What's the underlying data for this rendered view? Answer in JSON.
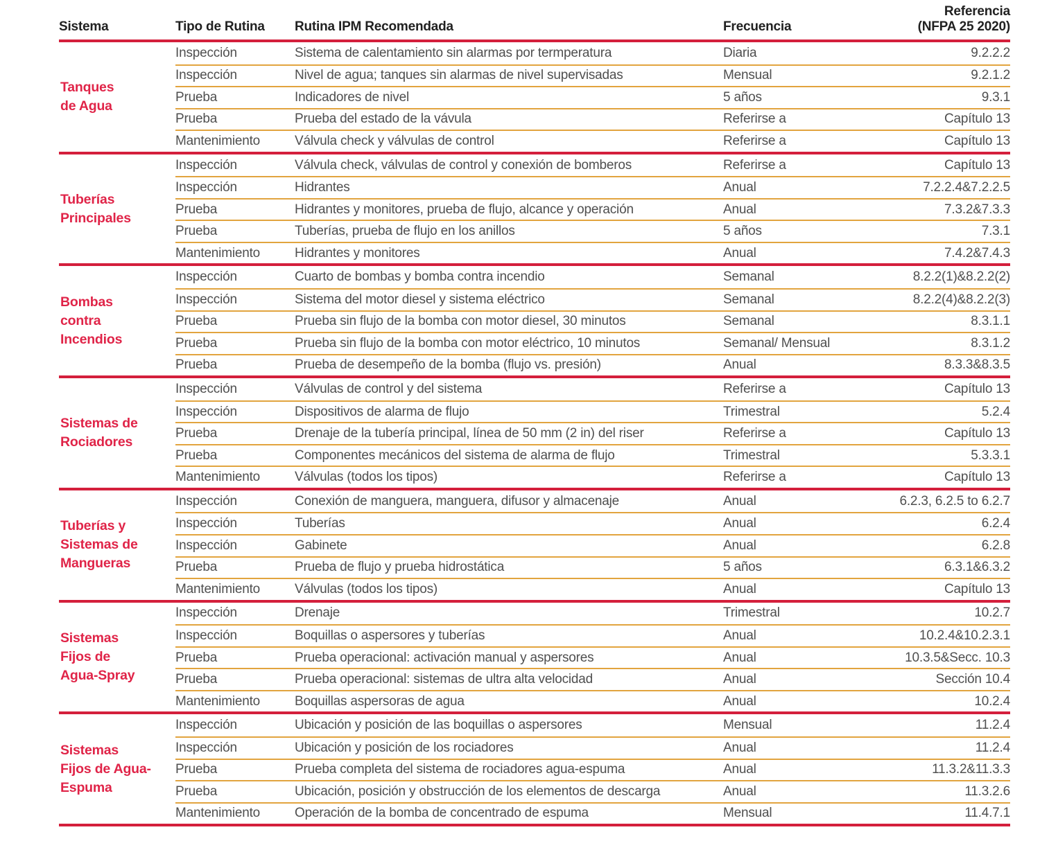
{
  "title": "Tabla de rutinas IPM recomendadas NFPA 25 2020",
  "colors": {
    "group_separator_line": "#d41f3c",
    "system_label_text": "#e02448",
    "row_divider_line": "#e2a43e",
    "body_text": "#4f4f4f",
    "header_text": "#212121"
  },
  "header": {
    "sistema": "Sistema",
    "tipo": "Tipo de Rutina",
    "rutina": "Rutina IPM Recomendada",
    "frecuencia": "Frecuencia",
    "referencia_line1": "Referencia",
    "referencia_line2": "(NFPA 25 2020)"
  },
  "groups": [
    {
      "system": "Tanques de Agua",
      "system_lines": [
        "Tanques",
        "de Agua"
      ],
      "rows": [
        {
          "tipo": "Inspección",
          "rutina": "Sistema de calentamiento sin alarmas por termperatura",
          "frecuencia": "Diaria",
          "referencia": "9.2.2.2"
        },
        {
          "tipo": "Inspección",
          "rutina": "Nivel de agua; tanques sin alarmas de nivel supervisadas",
          "frecuencia": "Mensual",
          "referencia": "9.2.1.2"
        },
        {
          "tipo": "Prueba",
          "rutina": "Indicadores de nivel",
          "frecuencia": "5 años",
          "referencia": "9.3.1"
        },
        {
          "tipo": "Prueba",
          "rutina": "Prueba del estado de la vávula",
          "frecuencia": "Referirse a",
          "referencia": "Capítulo 13"
        },
        {
          "tipo": "Mantenimiento",
          "rutina": "Válvula check y válvulas de control",
          "frecuencia": "Referirse a",
          "referencia": "Capítulo 13"
        }
      ]
    },
    {
      "system": "Tuberías Principales",
      "system_lines": [
        "Tuberías",
        "Principales"
      ],
      "rows": [
        {
          "tipo": "Inspección",
          "rutina": "Válvula check, válvulas de control y conexión de bomberos",
          "frecuencia": "Referirse a",
          "referencia": "Capítulo 13"
        },
        {
          "tipo": "Inspección",
          "rutina": "Hidrantes",
          "frecuencia": "Anual",
          "referencia": "7.2.2.4&7.2.2.5"
        },
        {
          "tipo": "Prueba",
          "rutina": "Hidrantes y monitores, prueba de flujo, alcance y operación",
          "frecuencia": "Anual",
          "referencia": "7.3.2&7.3.3"
        },
        {
          "tipo": "Prueba",
          "rutina": "Tuberías, prueba de flujo en los anillos",
          "frecuencia": "5 años",
          "referencia": "7.3.1"
        },
        {
          "tipo": "Mantenimiento",
          "rutina": "Hidrantes y monitores",
          "frecuencia": "Anual",
          "referencia": "7.4.2&7.4.3"
        }
      ]
    },
    {
      "system": "Bombas contra Incendios",
      "system_lines": [
        "Bombas",
        "contra",
        "Incendios"
      ],
      "rows": [
        {
          "tipo": "Inspección",
          "rutina": "Cuarto de bombas y bomba contra incendio",
          "frecuencia": "Semanal",
          "referencia": "8.2.2(1)&8.2.2(2)"
        },
        {
          "tipo": "Inspección",
          "rutina": "Sistema del motor diesel y sistema eléctrico",
          "frecuencia": "Semanal",
          "referencia": "8.2.2(4)&8.2.2(3)"
        },
        {
          "tipo": "Prueba",
          "rutina": "Prueba sin flujo de la bomba con motor diesel, 30 minutos",
          "frecuencia": "Semanal",
          "referencia": "8.3.1.1"
        },
        {
          "tipo": "Prueba",
          "rutina": "Prueba sin flujo de la bomba con motor eléctrico, 10 minutos",
          "frecuencia": "Semanal/ Mensual",
          "referencia": "8.3.1.2"
        },
        {
          "tipo": "Prueba",
          "rutina": "Prueba de desempeño de la bomba (flujo vs. presión)",
          "frecuencia": "Anual",
          "referencia": "8.3.3&8.3.5"
        }
      ]
    },
    {
      "system": "Sistemas de Rociadores",
      "system_lines": [
        "Sistemas de",
        "Rociadores"
      ],
      "rows": [
        {
          "tipo": "Inspección",
          "rutina": "Válvulas de control y del sistema",
          "frecuencia": "Referirse a",
          "referencia": "Capítulo 13"
        },
        {
          "tipo": "Inspección",
          "rutina": "Dispositivos de alarma de flujo",
          "frecuencia": "Trimestral",
          "referencia": "5.2.4"
        },
        {
          "tipo": "Prueba",
          "rutina": "Drenaje de la tubería principal, línea de 50 mm (2 in) del riser",
          "frecuencia": "Referirse a",
          "referencia": "Capítulo 13"
        },
        {
          "tipo": "Prueba",
          "rutina": "Componentes mecánicos del sistema de alarma de flujo",
          "frecuencia": "Trimestral",
          "referencia": "5.3.3.1"
        },
        {
          "tipo": "Mantenimiento",
          "rutina": "Válvulas (todos los tipos)",
          "frecuencia": "Referirse a",
          "referencia": "Capítulo 13"
        }
      ]
    },
    {
      "system": "Tuberías y Sistemas de Mangueras",
      "system_lines": [
        "Tuberías y",
        "Sistemas de",
        "Mangueras"
      ],
      "rows": [
        {
          "tipo": "Inspección",
          "rutina": "Conexión de manguera, manguera, difusor y almacenaje",
          "frecuencia": "Anual",
          "referencia": "6.2.3, 6.2.5 to 6.2.7"
        },
        {
          "tipo": "Inspección",
          "rutina": "Tuberías",
          "frecuencia": "Anual",
          "referencia": "6.2.4"
        },
        {
          "tipo": "Inspección",
          "rutina": "Gabinete",
          "frecuencia": "Anual",
          "referencia": "6.2.8"
        },
        {
          "tipo": "Prueba",
          "rutina": "Prueba de flujo y prueba hidrostática",
          "frecuencia": "5 años",
          "referencia": "6.3.1&6.3.2"
        },
        {
          "tipo": "Mantenimiento",
          "rutina": "Válvulas (todos los tipos)",
          "frecuencia": "Anual",
          "referencia": "Capítulo 13"
        }
      ]
    },
    {
      "system": "Sistemas Fijos de Agua-Spray",
      "system_lines": [
        "Sistemas",
        "Fijos de",
        "Agua-Spray"
      ],
      "rows": [
        {
          "tipo": "Inspección",
          "rutina": "Drenaje",
          "frecuencia": "Trimestral",
          "referencia": "10.2.7"
        },
        {
          "tipo": "Inspección",
          "rutina": "Boquillas o aspersores y tuberías",
          "frecuencia": "Anual",
          "referencia": "10.2.4&10.2.3.1"
        },
        {
          "tipo": "Prueba",
          "rutina": "Prueba operacional: activación manual y aspersores",
          "frecuencia": "Anual",
          "referencia": "10.3.5&Secc. 10.3"
        },
        {
          "tipo": "Prueba",
          "rutina": "Prueba operacional: sistemas de ultra alta velocidad",
          "frecuencia": "Anual",
          "referencia": "Sección 10.4"
        },
        {
          "tipo": "Mantenimiento",
          "rutina": "Boquillas aspersoras de agua",
          "frecuencia": "Anual",
          "referencia": "10.2.4"
        }
      ]
    },
    {
      "system": "Sistemas Fijos de Agua-Espuma",
      "system_lines": [
        "Sistemas",
        "Fijos de Agua-",
        "Espuma"
      ],
      "rows": [
        {
          "tipo": "Inspección",
          "rutina": "Ubicación y posición de las boquillas o aspersores",
          "frecuencia": "Mensual",
          "referencia": "11.2.4"
        },
        {
          "tipo": "Inspección",
          "rutina": "Ubicación y posición de los rociadores",
          "frecuencia": "Anual",
          "referencia": "11.2.4"
        },
        {
          "tipo": "Prueba",
          "rutina": "Prueba completa del sistema de rociadores agua-espuma",
          "frecuencia": "Anual",
          "referencia": "11.3.2&11.3.3"
        },
        {
          "tipo": "Prueba",
          "rutina": "Ubicación, posición y obstrucción de los elementos de descarga",
          "frecuencia": "Anual",
          "referencia": "11.3.2.6"
        },
        {
          "tipo": "Mantenimiento",
          "rutina": "Operación de la bomba de concentrado de espuma",
          "frecuencia": "Mensual",
          "referencia": "11.4.7.1"
        }
      ]
    }
  ]
}
